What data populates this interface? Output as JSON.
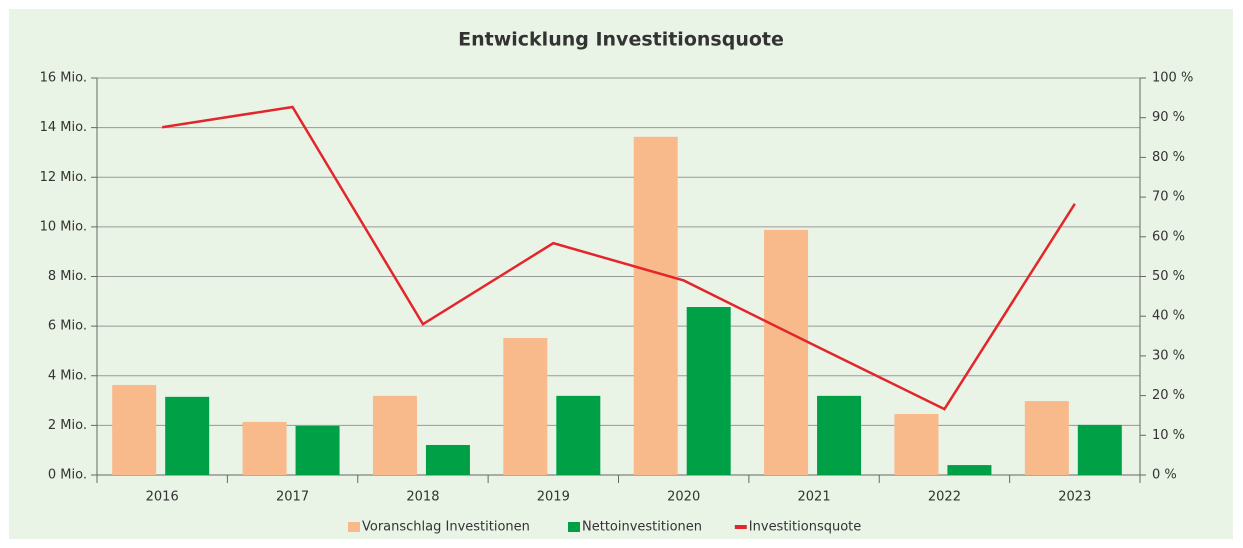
{
  "chart_data": {
    "type": "bar-line",
    "title": "Entwicklung Investitionsquote",
    "categories": [
      "2016",
      "2017",
      "2018",
      "2019",
      "2020",
      "2021",
      "2022",
      "2023"
    ],
    "series": [
      {
        "name": "Voranschlag Investitionen",
        "type": "bar",
        "color": "#f8b98b",
        "values": [
          3.63,
          2.14,
          3.19,
          5.52,
          13.63,
          9.88,
          2.46,
          2.98
        ]
      },
      {
        "name": "Nettoinvestitionen",
        "type": "bar",
        "color": "#00a046",
        "values": [
          3.15,
          1.98,
          1.21,
          3.19,
          6.77,
          3.19,
          0.4,
          2.02
        ]
      },
      {
        "name": "Investitionsquote",
        "type": "line",
        "axis": "y2",
        "color": "#e3262b",
        "values": [
          87.6,
          92.7,
          38,
          58.4,
          49,
          32.7,
          16.6,
          68.3
        ]
      }
    ],
    "ylim": [
      0,
      16
    ],
    "yticks": [
      {
        "value": 0,
        "label": "0 Mio."
      },
      {
        "value": 2,
        "label": "2 Mio."
      },
      {
        "value": 4,
        "label": "4 Mio."
      },
      {
        "value": 6,
        "label": "6 Mio."
      },
      {
        "value": 8,
        "label": "8 Mio."
      },
      {
        "value": 10,
        "label": "10 Mio."
      },
      {
        "value": 12,
        "label": "12 Mio."
      },
      {
        "value": 14,
        "label": "14 Mio."
      },
      {
        "value": 16,
        "label": "16 Mio."
      }
    ],
    "y2lim": [
      0,
      100
    ],
    "y2ticks": [
      {
        "value": 0,
        "label": "0 %"
      },
      {
        "value": 10,
        "label": "10 %"
      },
      {
        "value": 20,
        "label": "20 %"
      },
      {
        "value": 30,
        "label": "30 %"
      },
      {
        "value": 40,
        "label": "40 %"
      },
      {
        "value": 50,
        "label": "50 %"
      },
      {
        "value": 60,
        "label": "60 %"
      },
      {
        "value": 70,
        "label": "70 %"
      },
      {
        "value": 80,
        "label": "80 %"
      },
      {
        "value": 90,
        "label": "90 %"
      },
      {
        "value": 100,
        "label": "100 %"
      }
    ],
    "grid": true,
    "legend": "bottom"
  }
}
